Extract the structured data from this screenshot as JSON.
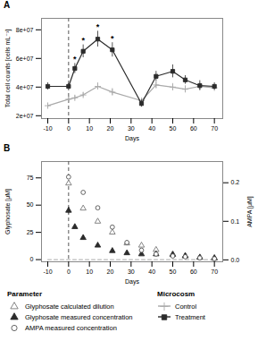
{
  "chart_data": [
    {
      "type": "line",
      "title": "A",
      "xlabel": "Days",
      "ylabel": "Total cell counts [cells mL⁻¹]",
      "xlim": [
        -13,
        74
      ],
      "xticks": [
        -10,
        0,
        10,
        20,
        30,
        40,
        50,
        60,
        70
      ],
      "ylim": [
        18000000.0,
        88000000.0
      ],
      "yticks": [
        {
          "value": 20000000.0,
          "label": "2e+07"
        },
        {
          "value": 40000000.0,
          "label": "4e+07"
        },
        {
          "value": 60000000.0,
          "label": "6e+07"
        },
        {
          "value": 80000000.0,
          "label": "8e+07"
        }
      ],
      "vlines": [
        0
      ],
      "series": [
        {
          "name": "Control",
          "type": "line",
          "marker": "plus",
          "color": "#aaaaaa",
          "x": [
            -10,
            0,
            3,
            7,
            14,
            21,
            35,
            42,
            50,
            56,
            63,
            70
          ],
          "values": [
            27000000.0,
            31500000.0,
            32500000.0,
            34500000.0,
            40500000.0,
            36500000.0,
            30500000.0,
            41500000.0,
            40000000.0,
            38500000.0,
            40500000.0,
            39500000.0
          ],
          "errors": [
            1800000.0,
            1500000.0,
            1500000.0,
            1500000.0,
            2500000.0,
            2500000.0,
            1800000.0,
            2500000.0,
            2500000.0,
            2500000.0,
            2500000.0,
            1800000.0
          ]
        },
        {
          "name": "Treatment",
          "type": "line",
          "marker": "square",
          "color": "#2b2b2b",
          "x": [
            -10,
            0,
            3,
            7,
            14,
            21,
            35,
            42,
            50,
            56,
            63,
            70
          ],
          "values": [
            40500000.0,
            40500000.0,
            53000000.0,
            65000000.0,
            73500000.0,
            66000000.0,
            28500000.0,
            47500000.0,
            51000000.0,
            45000000.0,
            41000000.0,
            40500000.0
          ],
          "errors": [
            2500000.0,
            2000000.0,
            3500000.0,
            4500000.0,
            5500000.0,
            5000000.0,
            2500000.0,
            3500000.0,
            4500000.0,
            3000000.0,
            3500000.0,
            2500000.0
          ],
          "point_labels": [
            null,
            null,
            "*",
            "*",
            "*",
            "*",
            null,
            null,
            null,
            null,
            null,
            null
          ]
        }
      ]
    },
    {
      "type": "line",
      "title": "B",
      "xlabel": "Days",
      "ylabel": "Glyphosate [μM]",
      "y2label": "AMPA [μM]",
      "xlim": [
        -13,
        74
      ],
      "xticks": [
        -10,
        0,
        10,
        20,
        30,
        40,
        50,
        60,
        70
      ],
      "ylim": [
        -2,
        90
      ],
      "yticks": [
        0,
        25,
        50,
        75
      ],
      "y2lim": [
        -0.005,
        0.255
      ],
      "y2ticks": [
        {
          "value": 0,
          "label": "0.0"
        },
        0.1,
        0.2
      ],
      "vlines": [
        0
      ],
      "legend": "bottom",
      "legend_groups": [
        {
          "title": "Parameter",
          "entries": [
            "Glyphosate calculated dilution",
            "Glyphosate measured concentration",
            "AMPA measured concentration"
          ]
        },
        {
          "title": "Microcosm",
          "entries": [
            "Control",
            "Treatment"
          ]
        }
      ],
      "series": [
        {
          "name": "Control",
          "type": "line",
          "line_style": "dashed",
          "color": "#bbbbbb",
          "x": [
            -10,
            0,
            7,
            14,
            21,
            28,
            35,
            42,
            50,
            56,
            63,
            70
          ],
          "values": [
            0,
            0,
            0,
            0,
            0,
            0,
            0,
            0,
            0,
            0,
            0,
            0
          ]
        },
        {
          "name": "Glyphosate calculated dilution",
          "type": "scatter",
          "marker": "triangle_open",
          "color": "#777777",
          "x": [
            0,
            7,
            14,
            21,
            28,
            35,
            42,
            50,
            56,
            63,
            70
          ],
          "values": [
            70,
            47,
            35,
            25,
            15,
            13,
            9,
            5,
            3,
            2,
            1
          ]
        },
        {
          "name": "Glyphosate measured concentration",
          "type": "scatter",
          "marker": "triangle",
          "color": "#2b2b2b",
          "x": [
            0,
            3,
            7,
            14,
            21,
            28,
            35,
            42,
            50,
            56,
            63,
            70
          ],
          "values": [
            45,
            30,
            20,
            13,
            8,
            6,
            5,
            5,
            4.5,
            3.5,
            2,
            1.5
          ],
          "errors": [
            3,
            2,
            2,
            1.5,
            1.2,
            0.8,
            0.8,
            0.8,
            0.5,
            0.5,
            0.4,
            0.3
          ]
        },
        {
          "name": "AMPA measured concentration",
          "type": "scatter",
          "marker": "circle_open",
          "color": "#555555",
          "axis": "y2",
          "x": [
            0,
            7,
            14,
            21,
            28,
            35,
            42,
            50,
            56,
            63,
            70
          ],
          "values": [
            0.215,
            0.175,
            0.135,
            0.085,
            0.045,
            0.025,
            0.015,
            0.01,
            0.008,
            0.005,
            0.003
          ]
        }
      ]
    }
  ]
}
